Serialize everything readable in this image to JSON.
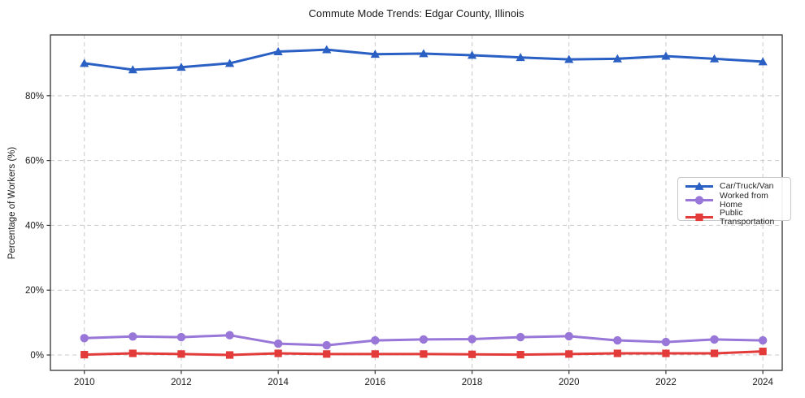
{
  "figure": {
    "title": "Commute Mode Trends: Edgar County, Illinois",
    "ylabel": "Percentage of Workers (%)"
  },
  "chart_data": {
    "type": "line",
    "title": "Commute Mode Trends: Edgar County, Illinois",
    "xlabel": "",
    "ylabel": "Percentage of Workers (%)",
    "x": [
      2010,
      2011,
      2012,
      2013,
      2014,
      2015,
      2016,
      2017,
      2018,
      2019,
      2020,
      2021,
      2022,
      2023,
      2024
    ],
    "series": [
      {
        "name": "Car/Truck/Van",
        "color": "#2a5fc4",
        "marker": "triangle",
        "values": [
          90.0,
          88.0,
          88.8,
          90.0,
          93.6,
          94.2,
          92.8,
          93.0,
          92.5,
          91.8,
          91.2,
          91.4,
          92.2,
          91.4,
          90.5
        ]
      },
      {
        "name": "Worked from Home",
        "color": "#9877d8",
        "marker": "circle",
        "values": [
          5.2,
          5.7,
          5.5,
          6.1,
          3.5,
          3.0,
          4.5,
          4.8,
          4.9,
          5.5,
          5.8,
          4.5,
          4.0,
          4.8,
          4.5
        ]
      },
      {
        "name": "Public Transportation",
        "color": "#e23b3a",
        "marker": "square",
        "values": [
          0.1,
          0.5,
          0.3,
          0.0,
          0.5,
          0.3,
          0.3,
          0.3,
          0.2,
          0.1,
          0.3,
          0.5,
          0.5,
          0.5,
          1.1
        ]
      }
    ],
    "xticks": [
      2010,
      2012,
      2014,
      2016,
      2018,
      2020,
      2022,
      2024
    ],
    "yticks": [
      0,
      20,
      40,
      60,
      80
    ],
    "ytick_labels": [
      "0%",
      "20%",
      "40%",
      "60%",
      "80%"
    ],
    "xlim": [
      2009.3,
      2024.4
    ],
    "ylim": [
      -4.75,
      98.75
    ],
    "grid": true,
    "legend_position": "middle-right",
    "grid_color": "#c9c9c9",
    "spine_color": "#333333",
    "tick_label_color": "#1a1a1a"
  }
}
